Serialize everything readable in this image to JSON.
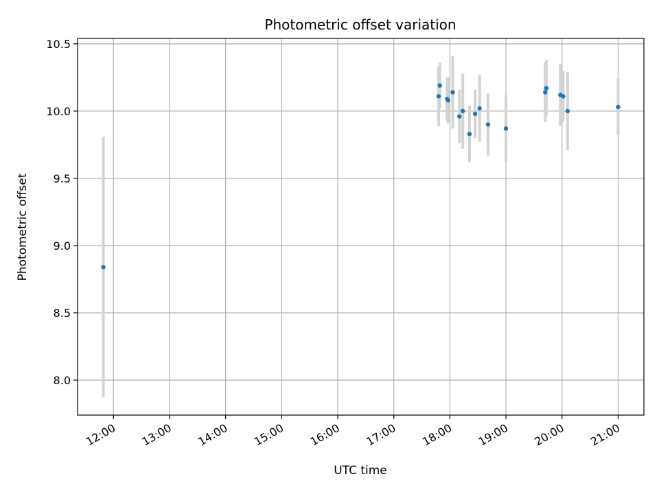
{
  "chart_data": {
    "type": "scatter",
    "title": "Photometric offset variation",
    "xlabel": "UTC time",
    "ylabel": "Photometric offset",
    "x_ticks": [
      "12:00",
      "13:00",
      "14:00",
      "15:00",
      "16:00",
      "17:00",
      "18:00",
      "19:00",
      "20:00",
      "21:00"
    ],
    "y_ticks": [
      "8.0",
      "8.5",
      "9.0",
      "9.5",
      "10.0",
      "10.5"
    ],
    "x_unit": "hours UTC",
    "xlim": [
      11.36,
      21.46
    ],
    "ylim": [
      7.74,
      10.54
    ],
    "grid": true,
    "colors": {
      "points": "#1f77b4",
      "errorbars": "#d3d3d3",
      "grid": "#b0b0b0"
    },
    "points": [
      {
        "x": 11.82,
        "y": 8.84,
        "err": 0.97
      },
      {
        "x": 17.8,
        "y": 10.11,
        "err": 0.22
      },
      {
        "x": 17.82,
        "y": 10.19,
        "err": 0.17
      },
      {
        "x": 17.95,
        "y": 10.09,
        "err": 0.16
      },
      {
        "x": 17.97,
        "y": 10.08,
        "err": 0.17
      },
      {
        "x": 18.05,
        "y": 10.14,
        "err": 0.27
      },
      {
        "x": 18.17,
        "y": 9.96,
        "err": 0.2
      },
      {
        "x": 18.23,
        "y": 10.0,
        "err": 0.28
      },
      {
        "x": 18.35,
        "y": 9.83,
        "err": 0.21
      },
      {
        "x": 18.45,
        "y": 9.98,
        "err": 0.18
      },
      {
        "x": 18.53,
        "y": 10.02,
        "err": 0.25
      },
      {
        "x": 18.68,
        "y": 9.9,
        "err": 0.23
      },
      {
        "x": 19.0,
        "y": 9.87,
        "err": 0.25
      },
      {
        "x": 19.7,
        "y": 10.14,
        "err": 0.22
      },
      {
        "x": 19.72,
        "y": 10.17,
        "err": 0.21
      },
      {
        "x": 19.97,
        "y": 10.12,
        "err": 0.23
      },
      {
        "x": 20.02,
        "y": 10.11,
        "err": 0.19
      },
      {
        "x": 20.1,
        "y": 10.0,
        "err": 0.29
      },
      {
        "x": 21.0,
        "y": 10.03,
        "err": 0.21
      }
    ]
  }
}
